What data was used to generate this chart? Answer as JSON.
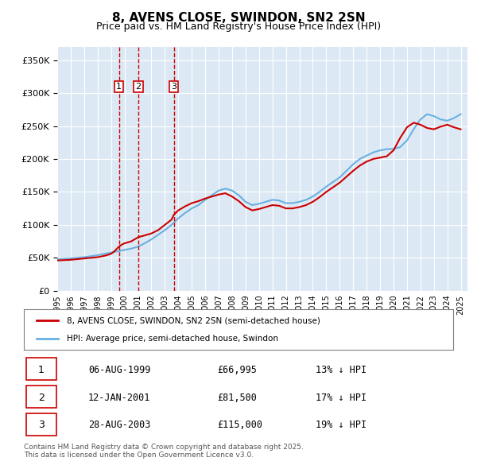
{
  "title": "8, AVENS CLOSE, SWINDON, SN2 2SN",
  "subtitle": "Price paid vs. HM Land Registry's House Price Index (HPI)",
  "ylabel_ticks": [
    "£0",
    "£50K",
    "£100K",
    "£150K",
    "£200K",
    "£250K",
    "£300K",
    "£350K"
  ],
  "ylim": [
    0,
    370000
  ],
  "xlim_start": 1995.0,
  "xlim_end": 2025.5,
  "bg_color": "#dce9f5",
  "plot_bg": "#dce9f5",
  "hpi_color": "#6ab0e0",
  "price_color": "#cc0000",
  "transaction_dates": [
    1999.59,
    2001.04,
    2003.66
  ],
  "transaction_labels": [
    "1",
    "2",
    "3"
  ],
  "transaction_prices": [
    66995,
    81500,
    115000
  ],
  "legend_label_price": "8, AVENS CLOSE, SWINDON, SN2 2SN (semi-detached house)",
  "legend_label_hpi": "HPI: Average price, semi-detached house, Swindon",
  "table_data": [
    [
      "1",
      "06-AUG-1999",
      "£66,995",
      "13% ↓ HPI"
    ],
    [
      "2",
      "12-JAN-2001",
      "£81,500",
      "17% ↓ HPI"
    ],
    [
      "3",
      "28-AUG-2003",
      "£115,000",
      "19% ↓ HPI"
    ]
  ],
  "footer": "Contains HM Land Registry data © Crown copyright and database right 2025.\nThis data is licensed under the Open Government Licence v3.0.",
  "hpi_years": [
    1995,
    1995.5,
    1996,
    1996.5,
    1997,
    1997.5,
    1998,
    1998.5,
    1999,
    1999.5,
    2000,
    2000.5,
    2001,
    2001.5,
    2002,
    2002.5,
    2003,
    2003.5,
    2004,
    2004.5,
    2005,
    2005.5,
    2006,
    2006.5,
    2007,
    2007.5,
    2008,
    2008.5,
    2009,
    2009.5,
    2010,
    2010.5,
    2011,
    2011.5,
    2012,
    2012.5,
    2013,
    2013.5,
    2014,
    2014.5,
    2015,
    2015.5,
    2016,
    2016.5,
    2017,
    2017.5,
    2018,
    2018.5,
    2019,
    2019.5,
    2020,
    2020.5,
    2021,
    2021.5,
    2022,
    2022.5,
    2023,
    2023.5,
    2024,
    2024.5,
    2025
  ],
  "hpi_values": [
    48000,
    48500,
    49000,
    50000,
    51000,
    52500,
    54000,
    56000,
    58000,
    60000,
    62000,
    64000,
    67000,
    72000,
    78000,
    85000,
    92000,
    100000,
    110000,
    118000,
    125000,
    130000,
    138000,
    145000,
    152000,
    155000,
    152000,
    145000,
    135000,
    130000,
    132000,
    135000,
    138000,
    137000,
    133000,
    133000,
    135000,
    138000,
    143000,
    150000,
    158000,
    165000,
    172000,
    182000,
    192000,
    200000,
    205000,
    210000,
    213000,
    215000,
    215000,
    218000,
    228000,
    245000,
    260000,
    268000,
    265000,
    260000,
    258000,
    262000,
    268000
  ],
  "price_years": [
    1995,
    1995.5,
    1996,
    1996.5,
    1997,
    1997.5,
    1998,
    1998.5,
    1999,
    1999.25,
    1999.59,
    1999.8,
    2000,
    2000.5,
    2001.04,
    2001.5,
    2002,
    2002.5,
    2003,
    2003.5,
    2003.66,
    2004,
    2004.5,
    2005,
    2005.5,
    2006,
    2006.5,
    2007,
    2007.5,
    2008,
    2008.5,
    2009,
    2009.5,
    2010,
    2010.5,
    2011,
    2011.5,
    2012,
    2012.5,
    2013,
    2013.5,
    2014,
    2014.5,
    2015,
    2015.5,
    2016,
    2016.5,
    2017,
    2017.5,
    2018,
    2018.5,
    2019,
    2019.5,
    2020,
    2020.5,
    2021,
    2021.5,
    2022,
    2022.5,
    2023,
    2023.5,
    2024,
    2024.5,
    2025
  ],
  "price_values": [
    46000,
    46500,
    47000,
    48000,
    49000,
    50000,
    51000,
    53000,
    56000,
    60000,
    66995,
    70000,
    72000,
    75000,
    81500,
    84000,
    87000,
    92000,
    100000,
    108000,
    115000,
    122000,
    128000,
    133000,
    136000,
    140000,
    143000,
    146000,
    148000,
    143000,
    136000,
    127000,
    122000,
    124000,
    127000,
    130000,
    129000,
    125000,
    125000,
    127000,
    130000,
    135000,
    142000,
    150000,
    157000,
    164000,
    173000,
    182000,
    190000,
    196000,
    200000,
    202000,
    204000,
    213000,
    232000,
    248000,
    255000,
    252000,
    247000,
    245000,
    249000,
    252000,
    248000,
    245000
  ]
}
